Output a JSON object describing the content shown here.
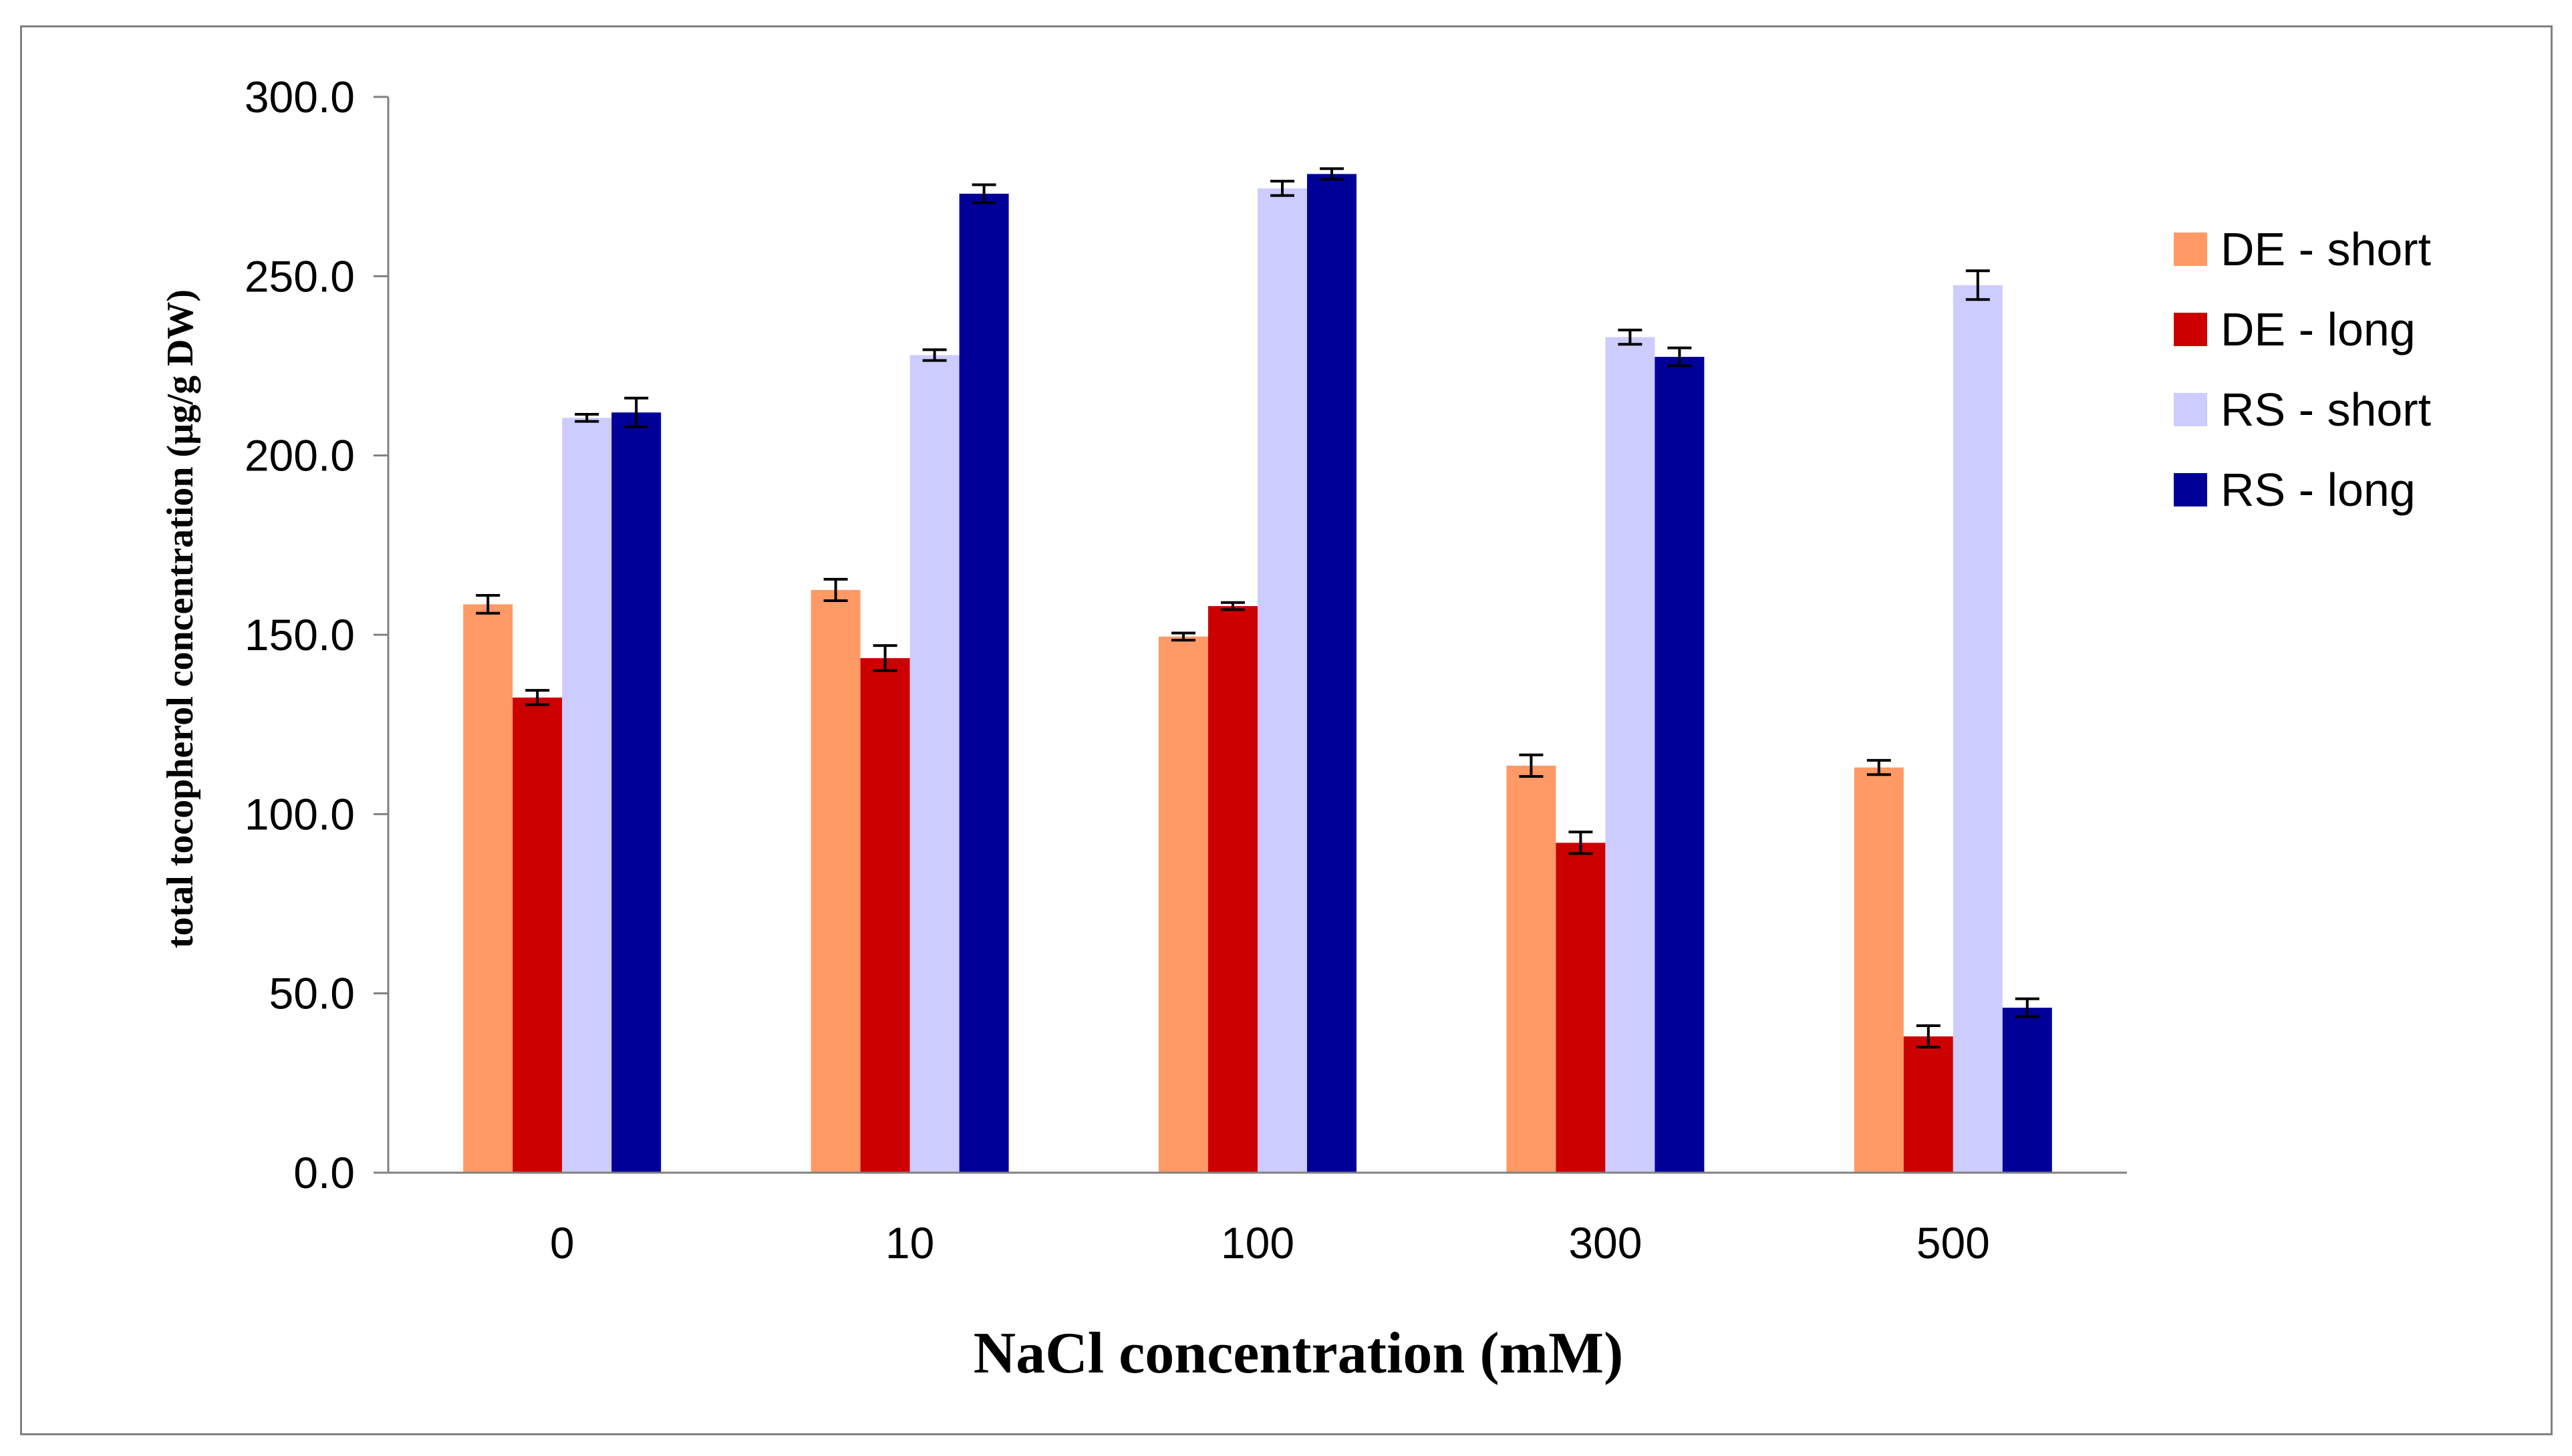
{
  "chart_data": {
    "type": "bar",
    "xlabel": "NaCl concentration (mM)",
    "ylabel": "total tocopherol concentration (µg/g DW)",
    "ylim": [
      0,
      300
    ],
    "yticks": [
      "0.0",
      "50.0",
      "100.0",
      "150.0",
      "200.0",
      "250.0",
      "300.0"
    ],
    "categories": [
      "0",
      "10",
      "100",
      "300",
      "500"
    ],
    "legend_position": "right",
    "grid": false,
    "error_bars": true,
    "series": [
      {
        "name": "DE - short",
        "color": "#FF9966",
        "values": [
          158.5,
          162.5,
          149.5,
          113.5,
          113.0
        ],
        "errors": [
          2.5,
          3.0,
          1.0,
          3.0,
          2.0
        ]
      },
      {
        "name": "DE - long",
        "color": "#CC0000",
        "values": [
          132.5,
          143.5,
          158.0,
          92.0,
          38.0
        ],
        "errors": [
          2.0,
          3.5,
          1.0,
          3.0,
          3.0
        ]
      },
      {
        "name": "RS - short",
        "color": "#CCCCFF",
        "values": [
          210.5,
          228.0,
          274.5,
          233.0,
          247.5
        ],
        "errors": [
          1.0,
          1.5,
          2.0,
          2.0,
          4.0
        ]
      },
      {
        "name": "RS - long",
        "color": "#000099",
        "values": [
          212.0,
          273.0,
          278.5,
          227.5,
          46.0
        ],
        "errors": [
          4.0,
          2.5,
          1.5,
          2.5,
          2.5
        ]
      }
    ]
  }
}
